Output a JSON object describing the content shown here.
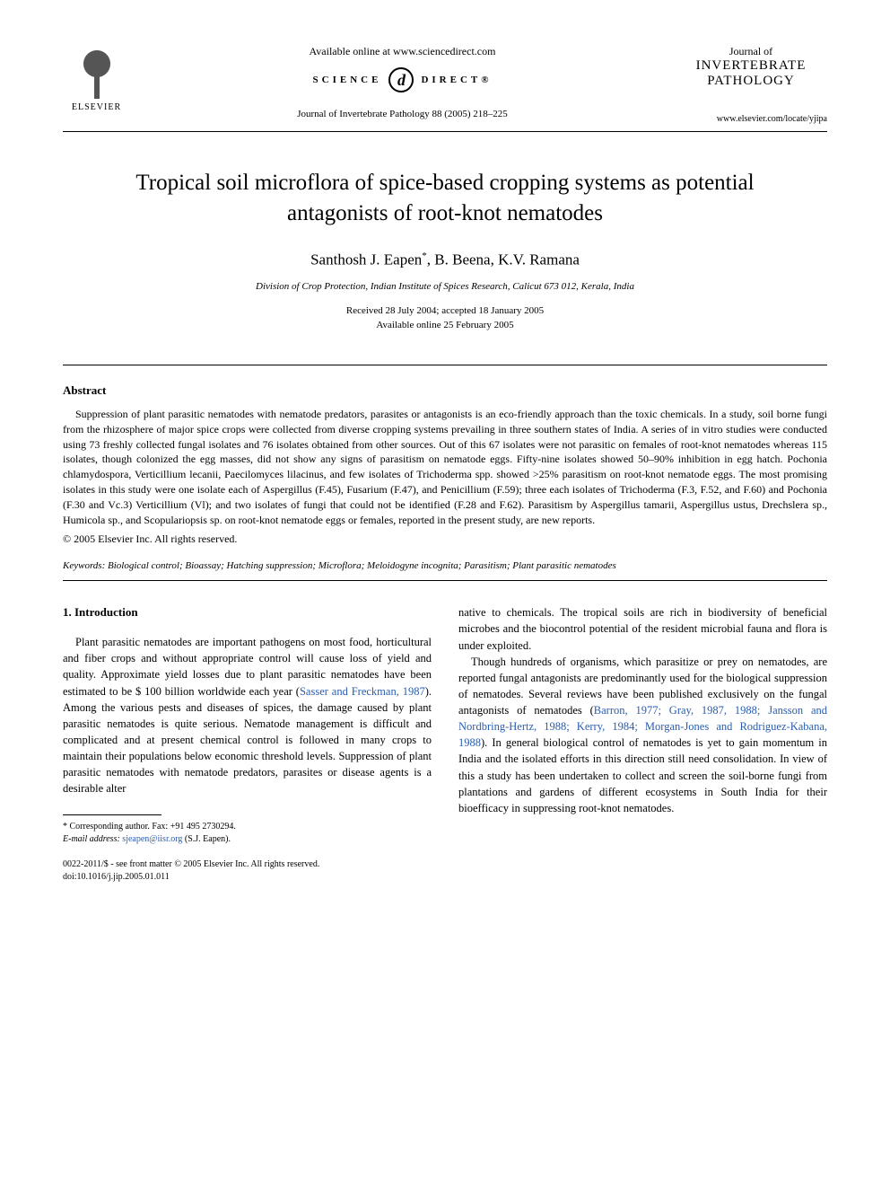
{
  "header": {
    "publisher": "ELSEVIER",
    "available_online": "Available online at www.sciencedirect.com",
    "science_direct_left": "SCIENCE",
    "science_direct_right": "DIRECT®",
    "sd_icon_glyph": "d",
    "journal_reference": "Journal of Invertebrate Pathology 88 (2005) 218–225",
    "journal_of": "Journal of",
    "journal_name_line1": "INVERTEBRATE",
    "journal_name_line2": "PATHOLOGY",
    "journal_url": "www.elsevier.com/locate/yjipa"
  },
  "article": {
    "title": "Tropical soil microflora of spice-based cropping systems as potential antagonists of root-knot nematodes",
    "authors_html": "Santhosh J. Eapen *, B. Beena, K.V. Ramana",
    "author1": "Santhosh J. Eapen",
    "author1_sup": "*",
    "author2": ", B. Beena, K.V. Ramana",
    "affiliation": "Division of Crop Protection, Indian Institute of Spices Research, Calicut 673 012, Kerala, India",
    "received": "Received 28 July 2004; accepted 18 January 2005",
    "available": "Available online 25 February 2005"
  },
  "abstract": {
    "heading": "Abstract",
    "body": "Suppression of plant parasitic nematodes with nematode predators, parasites or antagonists is an eco-friendly approach than the toxic chemicals. In a study, soil borne fungi from the rhizosphere of major spice crops were collected from diverse cropping systems prevailing in three southern states of India. A series of in vitro studies were conducted using 73 freshly collected fungal isolates and 76 isolates obtained from other sources. Out of this 67 isolates were not parasitic on females of root-knot nematodes whereas 115 isolates, though colonized the egg masses, did not show any signs of parasitism on nematode eggs. Fifty-nine isolates showed 50–90% inhibition in egg hatch. Pochonia chlamydospora, Verticillium lecanii, Paecilomyces lilacinus, and few isolates of Trichoderma spp. showed >25% parasitism on root-knot nematode eggs. The most promising isolates in this study were one isolate each of Aspergillus (F.45), Fusarium (F.47), and Penicillium (F.59); three each isolates of Trichoderma (F.3, F.52, and F.60) and Pochonia (F.30 and Vc.3) Verticillium (Vl); and two isolates of fungi that could not be identified (F.28 and F.62). Parasitism by Aspergillus tamarii, Aspergillus ustus, Drechslera sp., Humicola sp., and Scopulariopsis sp. on root-knot nematode eggs or females, reported in the present study, are new reports.",
    "copyright": "© 2005 Elsevier Inc. All rights reserved."
  },
  "keywords": {
    "label": "Keywords:",
    "text": " Biological control; Bioassay; Hatching suppression; Microflora; Meloidogyne incognita; Parasitism; Plant parasitic nematodes"
  },
  "intro": {
    "heading": "1. Introduction",
    "para1_pre": "Plant parasitic nematodes are important pathogens on most food, horticultural and fiber crops and without appropriate control will cause loss of yield and quality. Approximate yield losses due to plant parasitic nematodes have been estimated to be $ 100 billion worldwide each year (",
    "para1_ref1": "Sasser and Freckman, 1987",
    "para1_post": "). Among the various pests and diseases of spices, the damage caused by plant parasitic nematodes is quite serious. Nematode management is difficult and complicated and at present chemical control is followed in many crops to maintain their populations below economic threshold levels. Suppression of plant parasitic nematodes with nematode predators, parasites or disease agents is a desirable alter",
    "col2_top": "native to chemicals. The tropical soils are rich in biodiversity of beneficial microbes and the biocontrol potential of the resident microbial fauna and flora is under exploited.",
    "para2_pre": "Though hundreds of organisms, which parasitize or prey on nematodes, are reported fungal antagonists are predominantly used for the biological suppression of nematodes. Several reviews have been published exclusively on the fungal antagonists of nematodes (",
    "para2_ref": "Barron, 1977; Gray, 1987, 1988; Jansson and Nordbring-Hertz, 1988; Kerry, 1984; Morgan-Jones and Rodriguez-Kabana, 1988",
    "para2_post": "). In general biological control of nematodes is yet to gain momentum in India and the isolated efforts in this direction still need consolidation. In view of this a study has been undertaken to collect and screen the soil-borne fungi from plantations and gardens of different ecosystems in South India for their bioefficacy in suppressing root-knot nematodes."
  },
  "footnote": {
    "corresponding": "* Corresponding author. Fax: +91 495 2730294.",
    "email_label": "E-mail address:",
    "email": "sjeapen@iisr.org",
    "email_suffix": " (S.J. Eapen)."
  },
  "footer": {
    "issn_line": "0022-2011/$ - see front matter © 2005 Elsevier Inc. All rights reserved.",
    "doi": "doi:10.1016/j.jip.2005.01.011"
  },
  "colors": {
    "text": "#000000",
    "link": "#2a5db0",
    "background": "#ffffff"
  }
}
